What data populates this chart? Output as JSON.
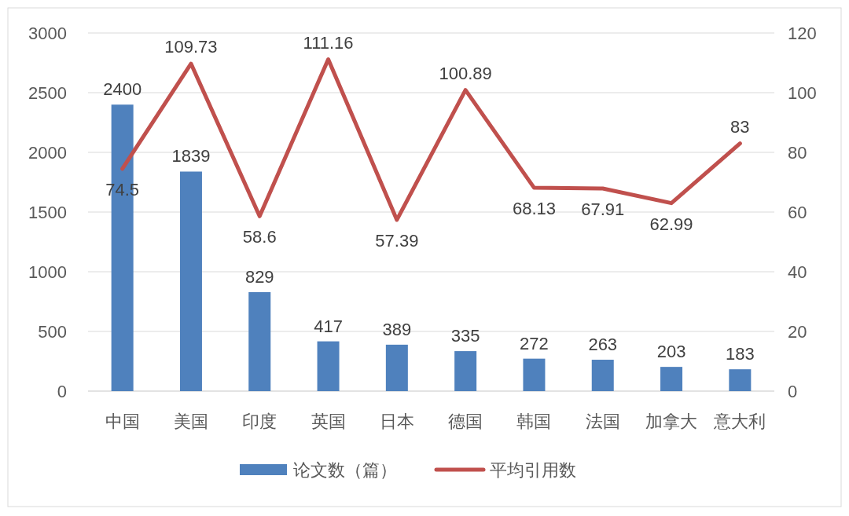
{
  "chart_data": {
    "type": "bar",
    "categories": [
      "中国",
      "美国",
      "印度",
      "英国",
      "日本",
      "德国",
      "韩国",
      "法国",
      "加拿大",
      "意大利"
    ],
    "series": [
      {
        "name": "论文数（篇）",
        "color": "#4f81bd",
        "values": [
          2400,
          1839,
          829,
          417,
          389,
          335,
          272,
          263,
          203,
          183
        ]
      },
      {
        "name": "平均引用数",
        "type": "line",
        "axis": "y2",
        "color": "#c0504d",
        "values": [
          74.5,
          109.73,
          58.6,
          111.16,
          57.39,
          100.89,
          68.13,
          67.91,
          62.99,
          83
        ]
      }
    ],
    "ylim": [
      0,
      3000
    ],
    "yticks": [
      0,
      500,
      1000,
      1500,
      2000,
      2500,
      3000
    ],
    "y2lim": [
      0,
      120
    ],
    "y2ticks": [
      0,
      20,
      40,
      60,
      80,
      100,
      120
    ],
    "grid": "y",
    "legend": "bottom",
    "data_labels": true
  }
}
